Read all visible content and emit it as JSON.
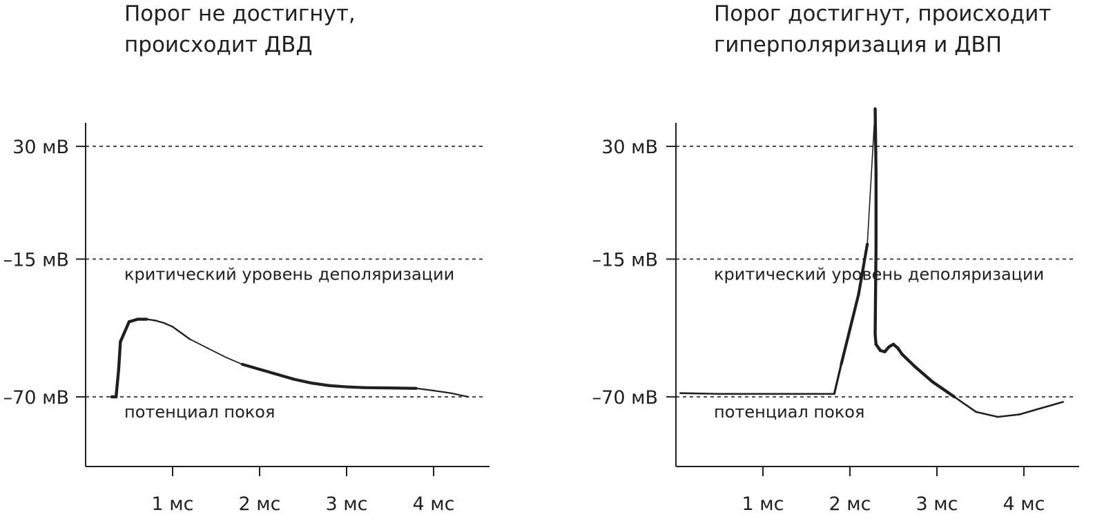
{
  "chart_data": [
    {
      "type": "line",
      "title_lines": [
        "Порог не достигнут,",
        "происходит ДВД"
      ],
      "x": [
        0.3,
        0.35,
        0.38,
        0.4,
        0.5,
        0.6,
        0.7,
        0.8,
        0.9,
        1.0,
        1.2,
        1.4,
        1.6,
        1.8,
        2.0,
        2.2,
        2.4,
        2.6,
        2.8,
        3.0,
        3.2,
        3.4,
        3.6,
        3.8,
        4.0,
        4.2,
        4.4
      ],
      "y": [
        -70,
        -70,
        -59,
        -48,
        -40,
        -39,
        -39,
        -39.5,
        -40.5,
        -42,
        -47,
        -50.5,
        -54,
        -57,
        -59,
        -61,
        -63,
        -64.5,
        -65.5,
        -66,
        -66.3,
        -66.4,
        -66.5,
        -66.6,
        -67.5,
        -68.5,
        -70
      ],
      "x_ticks": [
        1,
        2,
        3,
        4
      ],
      "x_tick_labels": [
        "1 мс",
        "2 мс",
        "3 мс",
        "4 мс"
      ],
      "y_ticks": [
        30,
        -15,
        -70
      ],
      "y_tick_labels": [
        "30 мВ",
        "–15 мВ",
        "–70 мВ"
      ],
      "xlim": [
        -1,
        4.7
      ],
      "ylim": [
        -98,
        39
      ],
      "reference_lines": [
        {
          "y": 30,
          "label": ""
        },
        {
          "y": -15,
          "label": "критический уровень деполяризации"
        },
        {
          "y": -70,
          "label": "потенциал покоя"
        }
      ]
    },
    {
      "type": "line",
      "title_lines": [
        "Порог достигнут, происходит",
        "гиперполяризация и ДВП"
      ],
      "x": [
        0.05,
        0.5,
        1.0,
        1.5,
        1.82,
        1.9,
        2.0,
        2.1,
        2.2,
        2.29,
        2.3,
        2.3,
        2.29,
        2.3,
        2.35,
        2.4,
        2.45,
        2.5,
        2.55,
        2.6,
        2.75,
        2.95,
        3.2,
        3.45,
        3.7,
        3.95,
        4.2,
        4.45
      ],
      "y": [
        -68.5,
        -68.8,
        -68.8,
        -68.8,
        -68.8,
        -57,
        -43,
        -29,
        -9,
        45,
        20,
        -10,
        -45,
        -49,
        -51.5,
        -52,
        -50,
        -49,
        -50.5,
        -53,
        -58,
        -64,
        -70,
        -76,
        -78,
        -77,
        -74.5,
        -72
      ],
      "x_ticks": [
        1,
        2,
        3,
        4
      ],
      "x_tick_labels": [
        "1 мс",
        "2 мс",
        "3 мс",
        "4 мс"
      ],
      "y_ticks": [
        30,
        -15,
        -70
      ],
      "y_tick_labels": [
        "30 мВ",
        "–15 мВ",
        "–70 мВ"
      ],
      "xlim": [
        -1,
        4.7
      ],
      "ylim": [
        -98,
        39
      ],
      "reference_lines": [
        {
          "y": 30,
          "label": ""
        },
        {
          "y": -15,
          "label": "критический уровень деполяризации"
        },
        {
          "y": -70,
          "label": "потенциал покоя"
        }
      ]
    }
  ],
  "colors": {
    "ink": "#1f1f1f",
    "background": "#ffffff"
  }
}
